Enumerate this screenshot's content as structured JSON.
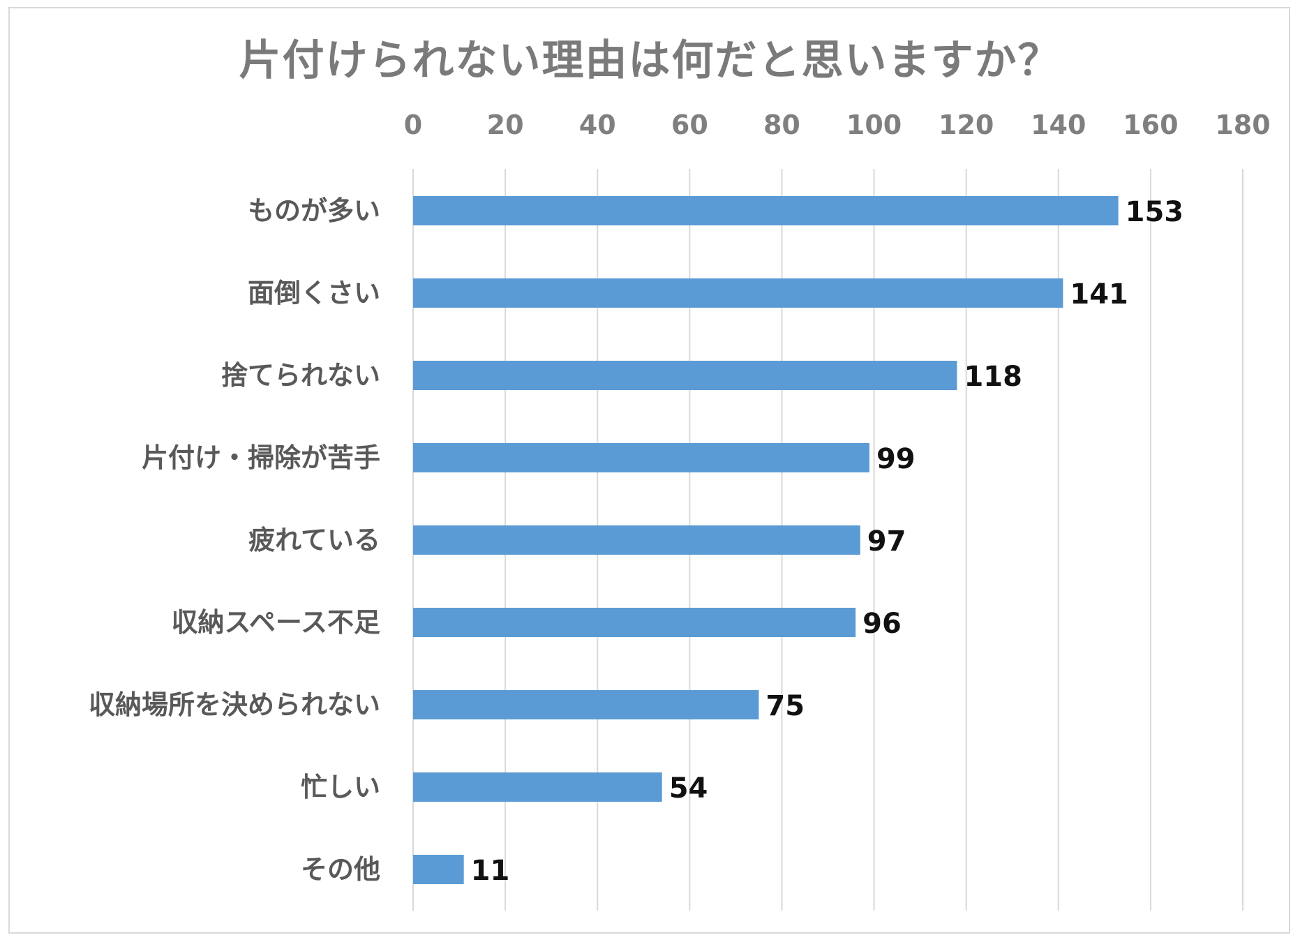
{
  "chart_data": {
    "type": "bar",
    "orientation": "horizontal",
    "title": "片付けられない理由は何だと思いますか？",
    "categories": [
      "ものが多い",
      "面倒くさい",
      "捨てられない",
      "片付け・掃除が苦手",
      "疲れている",
      "収納スペース不足",
      "収納場所を決められない",
      "忙しい",
      "その他"
    ],
    "values": [
      153,
      141,
      118,
      99,
      97,
      96,
      75,
      54,
      11
    ],
    "xlim": [
      0,
      180
    ],
    "ticks": [
      0,
      20,
      40,
      60,
      80,
      100,
      120,
      140,
      160,
      180
    ],
    "axis_position": "top",
    "grid": true,
    "legend": "none",
    "bar_color": "#5b9bd5"
  }
}
